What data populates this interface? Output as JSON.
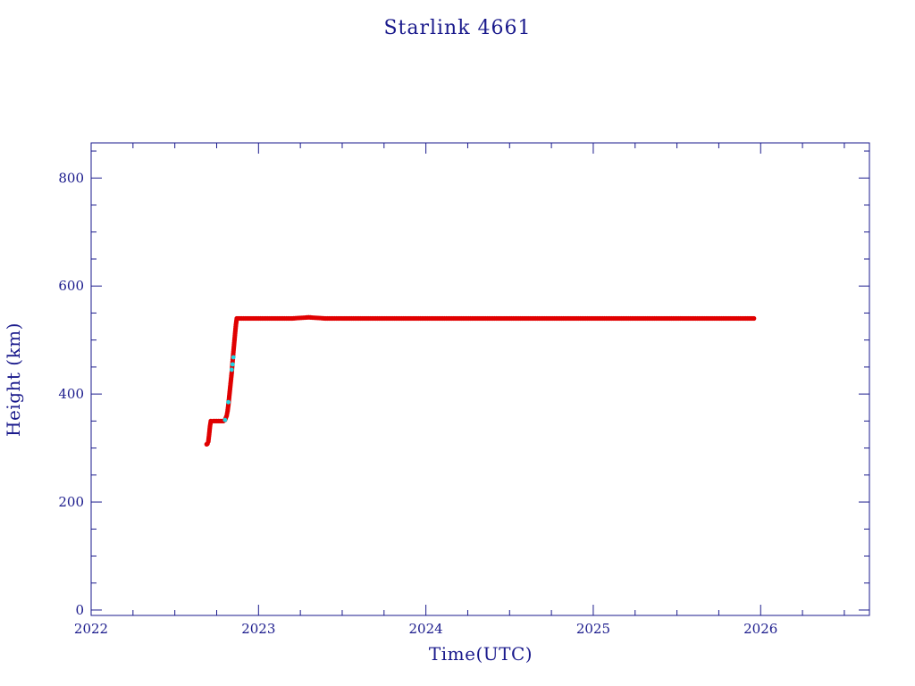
{
  "chart_data": {
    "type": "scatter",
    "title": "Starlink 4661",
    "xlabel": "Time(UTC)",
    "ylabel": "Height (km)",
    "xlim": [
      2022.0,
      2026.65
    ],
    "ylim": [
      -10,
      865
    ],
    "x_ticks": [
      2022,
      2023,
      2024,
      2025,
      2026
    ],
    "x_tick_labels": [
      "2022",
      "2023",
      "2024",
      "2025",
      "2026"
    ],
    "y_ticks": [
      0,
      200,
      400,
      600,
      800
    ],
    "y_tick_labels": [
      "0",
      "200",
      "400",
      "600",
      "800"
    ],
    "grid": false,
    "colors": {
      "axis": "#1a1a8c",
      "primary": "#e00000",
      "secondary": "#22d4e0"
    },
    "series": [
      {
        "color": "#e00000",
        "points": [
          [
            2022.69,
            307
          ],
          [
            2022.695,
            308
          ],
          [
            2022.7,
            312
          ],
          [
            2022.705,
            325
          ],
          [
            2022.71,
            340
          ],
          [
            2022.715,
            350
          ],
          [
            2022.73,
            350
          ],
          [
            2022.75,
            350
          ],
          [
            2022.77,
            350
          ],
          [
            2022.79,
            350
          ],
          [
            2022.8,
            352
          ],
          [
            2022.81,
            360
          ],
          [
            2022.815,
            368
          ],
          [
            2022.82,
            380
          ],
          [
            2022.825,
            395
          ],
          [
            2022.83,
            410
          ],
          [
            2022.835,
            425
          ],
          [
            2022.84,
            440
          ],
          [
            2022.845,
            460
          ],
          [
            2022.85,
            478
          ],
          [
            2022.855,
            495
          ],
          [
            2022.86,
            512
          ],
          [
            2022.865,
            528
          ],
          [
            2022.87,
            540
          ],
          [
            2022.9,
            540
          ],
          [
            2023.0,
            540
          ],
          [
            2023.1,
            540
          ],
          [
            2023.2,
            540
          ],
          [
            2023.3,
            542
          ],
          [
            2023.4,
            540
          ],
          [
            2023.5,
            540
          ],
          [
            2023.6,
            540
          ],
          [
            2023.7,
            540
          ],
          [
            2023.8,
            540
          ],
          [
            2023.9,
            540
          ],
          [
            2024.0,
            540
          ],
          [
            2024.1,
            540
          ],
          [
            2024.2,
            540
          ],
          [
            2024.3,
            540
          ],
          [
            2024.4,
            540
          ],
          [
            2024.5,
            540
          ],
          [
            2024.6,
            540
          ],
          [
            2024.7,
            540
          ],
          [
            2024.8,
            540
          ],
          [
            2024.9,
            540
          ],
          [
            2025.0,
            540
          ],
          [
            2025.1,
            540
          ],
          [
            2025.2,
            540
          ],
          [
            2025.3,
            540
          ],
          [
            2025.4,
            540
          ],
          [
            2025.5,
            540
          ],
          [
            2025.6,
            540
          ],
          [
            2025.7,
            540
          ],
          [
            2025.8,
            540
          ],
          [
            2025.9,
            540
          ],
          [
            2025.96,
            540
          ]
        ]
      },
      {
        "color": "#22d4e0",
        "points": [
          [
            2022.8,
            352
          ],
          [
            2022.82,
            385
          ],
          [
            2022.84,
            445
          ],
          [
            2022.845,
            455
          ],
          [
            2022.85,
            468
          ]
        ]
      }
    ]
  }
}
